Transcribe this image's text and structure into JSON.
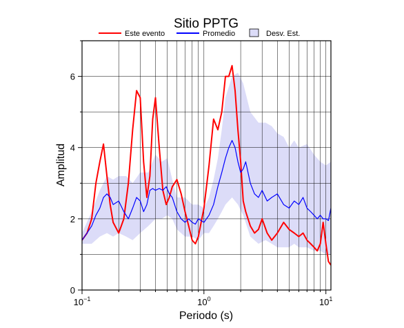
{
  "chart_data": {
    "type": "line",
    "title": "Sitio PPTG",
    "xlabel": "Periodo (s)",
    "ylabel": "Amplitud",
    "x_scale": "log",
    "xlim": [
      0.1,
      11
    ],
    "ylim": [
      0,
      7
    ],
    "x_ticks": [
      {
        "value": 0.1,
        "base": "10",
        "exp": "−1"
      },
      {
        "value": 1,
        "base": "10",
        "exp": "0"
      },
      {
        "value": 10,
        "base": "10",
        "exp": "1"
      }
    ],
    "y_ticks": [
      0,
      2,
      4,
      6
    ],
    "grid": true,
    "legend_position": "top",
    "colors": {
      "event": "#ff0000",
      "mean": "#0000ff",
      "band": "#dcdcf8",
      "band_edge": "#000000"
    },
    "legend": [
      {
        "label": "Este evento",
        "kind": "line",
        "color": "#ff0000"
      },
      {
        "label": "Promedio",
        "kind": "line",
        "color": "#0000ff"
      },
      {
        "label": "Desv. Est.",
        "kind": "box",
        "color": "#dcdcf8"
      }
    ],
    "series": [
      {
        "name": "Este evento",
        "color": "#ff0000",
        "x": [
          0.1,
          0.11,
          0.12,
          0.13,
          0.14,
          0.15,
          0.16,
          0.17,
          0.18,
          0.2,
          0.22,
          0.24,
          0.26,
          0.28,
          0.3,
          0.32,
          0.34,
          0.36,
          0.38,
          0.4,
          0.43,
          0.46,
          0.49,
          0.52,
          0.55,
          0.6,
          0.65,
          0.7,
          0.75,
          0.8,
          0.85,
          0.9,
          1.0,
          1.1,
          1.2,
          1.3,
          1.4,
          1.5,
          1.6,
          1.7,
          1.8,
          1.9,
          2.0,
          2.1,
          2.2,
          2.4,
          2.6,
          2.8,
          3.0,
          3.3,
          3.6,
          4.0,
          4.5,
          5.0,
          5.5,
          6.0,
          6.5,
          7.0,
          7.5,
          8.0,
          8.5,
          9.0,
          9.5,
          10.0,
          10.5,
          11.0
        ],
        "y": [
          1.4,
          1.6,
          2.0,
          3.0,
          3.6,
          4.1,
          3.2,
          2.4,
          1.9,
          1.6,
          2.0,
          3.0,
          4.5,
          5.6,
          5.4,
          3.6,
          2.6,
          3.2,
          4.8,
          5.4,
          4.0,
          2.8,
          2.4,
          2.6,
          2.9,
          3.1,
          2.7,
          2.2,
          1.8,
          1.4,
          1.3,
          1.5,
          2.3,
          3.5,
          4.8,
          4.5,
          5.0,
          6.0,
          6.0,
          6.3,
          5.6,
          4.5,
          3.6,
          2.5,
          2.2,
          1.8,
          1.6,
          1.7,
          2.0,
          1.6,
          1.4,
          1.6,
          1.9,
          1.7,
          1.6,
          1.5,
          1.6,
          1.4,
          1.3,
          1.2,
          1.1,
          1.3,
          1.9,
          1.3,
          0.8,
          0.7
        ]
      },
      {
        "name": "Promedio",
        "color": "#0000ff",
        "x": [
          0.1,
          0.11,
          0.12,
          0.13,
          0.14,
          0.15,
          0.16,
          0.17,
          0.18,
          0.2,
          0.22,
          0.24,
          0.26,
          0.28,
          0.3,
          0.32,
          0.34,
          0.36,
          0.38,
          0.4,
          0.43,
          0.46,
          0.49,
          0.52,
          0.55,
          0.6,
          0.65,
          0.7,
          0.75,
          0.8,
          0.85,
          0.9,
          1.0,
          1.1,
          1.2,
          1.3,
          1.4,
          1.5,
          1.6,
          1.7,
          1.8,
          1.9,
          2.0,
          2.1,
          2.2,
          2.4,
          2.6,
          2.8,
          3.0,
          3.3,
          3.6,
          4.0,
          4.5,
          5.0,
          5.5,
          6.0,
          6.5,
          7.0,
          7.5,
          8.0,
          8.5,
          9.0,
          9.5,
          10.0,
          10.5,
          11.0
        ],
        "y": [
          1.4,
          1.6,
          1.8,
          2.1,
          2.3,
          2.6,
          2.7,
          2.6,
          2.4,
          2.5,
          2.2,
          2.0,
          2.3,
          2.6,
          2.5,
          2.2,
          2.4,
          2.8,
          2.85,
          2.8,
          2.85,
          2.8,
          2.9,
          2.7,
          2.6,
          2.2,
          2.0,
          1.9,
          2.0,
          1.9,
          1.85,
          2.0,
          1.9,
          2.1,
          2.4,
          2.9,
          3.3,
          3.7,
          4.0,
          4.2,
          4.0,
          3.6,
          3.3,
          3.4,
          3.6,
          3.0,
          2.7,
          2.6,
          2.8,
          2.5,
          2.6,
          2.7,
          2.4,
          2.3,
          2.5,
          2.4,
          2.6,
          2.3,
          2.2,
          2.1,
          2.0,
          2.1,
          2.0,
          2.0,
          1.95,
          2.3
        ]
      }
    ],
    "std_band": {
      "name": "Desv. Est.",
      "x": [
        0.1,
        0.12,
        0.14,
        0.16,
        0.18,
        0.2,
        0.23,
        0.26,
        0.3,
        0.35,
        0.4,
        0.45,
        0.5,
        0.55,
        0.6,
        0.7,
        0.8,
        0.9,
        1.0,
        1.1,
        1.2,
        1.3,
        1.4,
        1.5,
        1.7,
        1.9,
        2.1,
        2.4,
        2.8,
        3.2,
        3.6,
        4.0,
        4.5,
        5.0,
        5.5,
        6.0,
        7.0,
        8.0,
        9.0,
        10.0,
        11.0
      ],
      "upper": [
        1.6,
        2.2,
        2.8,
        3.2,
        3.1,
        3.2,
        3.2,
        3.0,
        3.3,
        3.3,
        3.8,
        3.6,
        3.7,
        3.1,
        2.6,
        2.6,
        2.4,
        2.4,
        2.3,
        2.6,
        3.1,
        3.7,
        4.5,
        5.4,
        6.0,
        6.1,
        5.8,
        5.0,
        4.7,
        4.7,
        4.6,
        4.4,
        4.3,
        4.0,
        4.2,
        4.0,
        4.1,
        3.8,
        3.6,
        3.5,
        3.6
      ],
      "lower": [
        1.3,
        1.3,
        1.5,
        1.6,
        1.5,
        1.6,
        1.5,
        1.4,
        1.6,
        1.8,
        2.0,
        2.0,
        2.1,
        2.0,
        1.7,
        1.5,
        1.5,
        1.4,
        1.6,
        1.6,
        1.8,
        2.0,
        2.2,
        2.4,
        2.6,
        2.4,
        2.1,
        1.5,
        1.3,
        1.4,
        1.3,
        1.2,
        1.2,
        1.2,
        1.3,
        1.2,
        1.2,
        1.1,
        1.1,
        1.0,
        1.0
      ]
    }
  }
}
